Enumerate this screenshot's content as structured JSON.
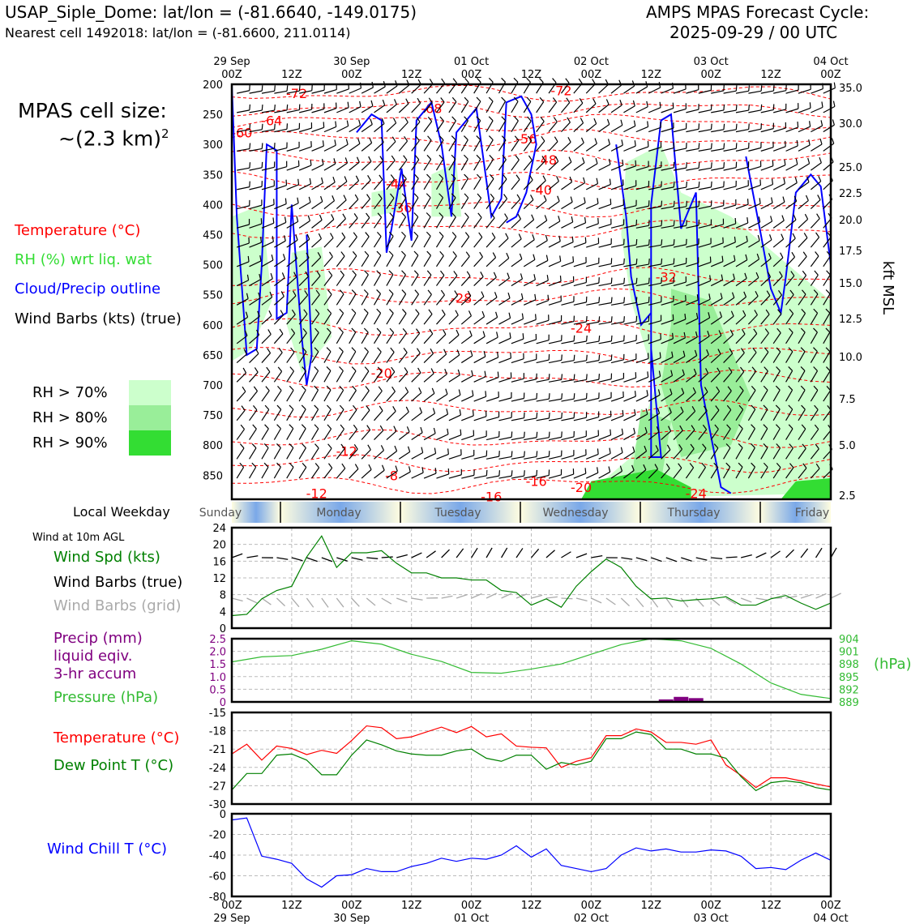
{
  "header": {
    "station": "USAP_Siple_Dome: lat/lon = (-81.6640, -149.0175)",
    "nearest": "Nearest cell 1492018: lat/lon = (-81.6600, 211.0114)",
    "cycle_title": "AMPS MPAS Forecast Cycle:",
    "cycle_value": "2025-09-29 / 00 UTC"
  },
  "sidebar": {
    "cell_size_label": "MPAS cell size:",
    "cell_size_value": "~(2.3 km)",
    "cell_size_exp": "2",
    "legend_temperature": "Temperature (°C)",
    "legend_rh": "RH (%) wrt liq. wat",
    "legend_cloud": "Cloud/Precip outline",
    "legend_barbs": "Wind Barbs (kts) (true)",
    "rh_levels": [
      {
        "label": "RH > 70%",
        "color": "#ccffcc"
      },
      {
        "label": "RH > 80%",
        "color": "#99ee99"
      },
      {
        "label": "RH > 90%",
        "color": "#33dd33"
      }
    ],
    "weekday_label": "Local Weekday",
    "wind_10m_label": "Wind at 10m AGL",
    "wind_spd_label": "Wind Spd (kts)",
    "wind_barbs_true": "Wind Barbs (true)",
    "wind_barbs_grid": "Wind Barbs (grid)",
    "precip_label_1": "Precip (mm)",
    "precip_label_2": "liquid eqiv.",
    "precip_label_3": "3-hr accum",
    "pressure_label": "Pressure (hPa)",
    "pressure_unit": "(hPa)",
    "temp_label": "Temperature (°C)",
    "dew_label": "Dew Point T (°C)",
    "windchill_label": "Wind Chill T (°C)"
  },
  "colors": {
    "temperature": "#ff0000",
    "rh": "#33cc33",
    "cloud": "#0000ff",
    "wind_speed": "#008000",
    "grid_barbs": "#aaaaaa",
    "precip": "#800080",
    "pressure": "#33bb33",
    "dew": "#008000",
    "windchill": "#0000ff"
  },
  "time_axis": {
    "ticks": [
      {
        "top": "29 Sep",
        "bot": "00Z"
      },
      {
        "top": "",
        "bot": "12Z"
      },
      {
        "top": "30 Sep",
        "bot": "00Z"
      },
      {
        "top": "",
        "bot": "12Z"
      },
      {
        "top": "01 Oct",
        "bot": "00Z"
      },
      {
        "top": "",
        "bot": "12Z"
      },
      {
        "top": "02 Oct",
        "bot": "00Z"
      },
      {
        "top": "",
        "bot": "12Z"
      },
      {
        "top": "03 Oct",
        "bot": "00Z"
      },
      {
        "top": "",
        "bot": "12Z"
      },
      {
        "top": "04 Oct",
        "bot": "00Z"
      }
    ]
  },
  "weekdays": [
    "Sunday",
    "Monday",
    "Tuesday",
    "Wednesday",
    "Thursday",
    "Friday"
  ],
  "chart_data": [
    {
      "type": "heatmap",
      "panel": "time-height cross section",
      "y_left_label": "",
      "y_left_ticks": [
        200,
        250,
        300,
        350,
        400,
        450,
        500,
        550,
        600,
        650,
        700,
        750,
        800,
        850
      ],
      "y_right_label": "kft MSL",
      "y_right_ticks": [
        "35.0",
        "30.0",
        "25.0",
        "22.5",
        "20.0",
        "17.5",
        "15.0",
        "12.5",
        "10.0",
        "7.5",
        "5.0",
        "2.5"
      ],
      "ylim": [
        200,
        890
      ],
      "x_hours": [
        0,
        120
      ],
      "temperature_contours": [
        {
          "label": "-72",
          "t": 13,
          "p": 215
        },
        {
          "label": "-72",
          "t": 66,
          "p": 210
        },
        {
          "label": "-68",
          "t": 40,
          "p": 240
        },
        {
          "label": "-64",
          "t": 8,
          "p": 260
        },
        {
          "label": "-60",
          "t": 2,
          "p": 280
        },
        {
          "label": "-56",
          "t": 59,
          "p": 290
        },
        {
          "label": "-48",
          "t": 63,
          "p": 325
        },
        {
          "label": "-44",
          "t": 33,
          "p": 365
        },
        {
          "label": "-40",
          "t": 62,
          "p": 375
        },
        {
          "label": "-36",
          "t": 34,
          "p": 405
        },
        {
          "label": "-32",
          "t": 87,
          "p": 520
        },
        {
          "label": "-28",
          "t": 46,
          "p": 555
        },
        {
          "label": "-24",
          "t": 70,
          "p": 605
        },
        {
          "label": "-20",
          "t": 30,
          "p": 680
        },
        {
          "label": "-16",
          "t": 61,
          "p": 860
        },
        {
          "label": "-20",
          "t": 70,
          "p": 870
        },
        {
          "label": "-12",
          "t": 23,
          "p": 810
        },
        {
          "label": "-8",
          "t": 32,
          "p": 850
        },
        {
          "label": "-12",
          "t": 17,
          "p": 880
        },
        {
          "label": "-16",
          "t": 52,
          "p": 885
        },
        {
          "label": "-24",
          "t": 93,
          "p": 880
        }
      ]
    },
    {
      "type": "line",
      "panel": "wind speed 10m",
      "ylabel": "Wind Spd (kts)",
      "ylim": [
        0,
        24
      ],
      "yticks": [
        0,
        4,
        8,
        12,
        16,
        20,
        24
      ],
      "x_hours": [
        0,
        3,
        6,
        9,
        12,
        15,
        18,
        21,
        24,
        27,
        30,
        33,
        36,
        39,
        42,
        45,
        48,
        51,
        54,
        57,
        60,
        63,
        66,
        69,
        72,
        75,
        78,
        81,
        84,
        87,
        90,
        93,
        96,
        99,
        102,
        105,
        108,
        111,
        114,
        117,
        120
      ],
      "series": [
        {
          "name": "Wind Spd (kts)",
          "values": [
            3,
            3.3,
            7,
            9,
            10,
            17,
            22,
            14.5,
            18,
            18,
            18.5,
            15.5,
            13.2,
            13.2,
            12,
            12,
            11.5,
            11.5,
            9,
            8.5,
            5.5,
            7,
            5,
            10,
            13.5,
            16.5,
            14.5,
            10,
            7,
            7.2,
            6.5,
            6.8,
            7,
            7.5,
            5.5,
            5.5,
            7,
            7.8,
            6,
            4.5,
            6
          ]
        }
      ]
    },
    {
      "type": "line",
      "panel": "precip and pressure",
      "ylabel": "Precip (mm)",
      "ylim": [
        0,
        2.5
      ],
      "yticks": [
        0,
        0.5,
        1.0,
        1.5,
        2.0,
        2.5
      ],
      "y2label": "(hPa)",
      "y2lim": [
        889,
        904
      ],
      "y2ticks": [
        889,
        892,
        895,
        898,
        901,
        904
      ],
      "x_hours": [
        0,
        6,
        12,
        18,
        24,
        30,
        36,
        42,
        48,
        54,
        60,
        66,
        72,
        78,
        84,
        90,
        96,
        102,
        108,
        114,
        120
      ],
      "series": [
        {
          "name": "Pressure (hPa)",
          "values": [
            898.5,
            899.7,
            900,
            901.5,
            903.5,
            902.7,
            900.3,
            898.6,
            896,
            895.8,
            896.8,
            898,
            900.3,
            902.6,
            904,
            903.5,
            901.7,
            898,
            893.5,
            890.8,
            889.8
          ]
        }
      ],
      "precip_bars": {
        "x_hours": [
          87,
          90,
          93
        ],
        "values": [
          0.1,
          0.2,
          0.15
        ]
      }
    },
    {
      "type": "line",
      "panel": "temperature and dew point",
      "ylim": [
        -30,
        -15
      ],
      "yticks": [
        -15,
        -18,
        -21,
        -24,
        -27,
        -30
      ],
      "x_hours": [
        0,
        3,
        6,
        9,
        12,
        15,
        18,
        21,
        24,
        27,
        30,
        33,
        36,
        39,
        42,
        45,
        48,
        51,
        54,
        57,
        60,
        63,
        66,
        69,
        72,
        75,
        78,
        81,
        84,
        87,
        90,
        93,
        96,
        99,
        102,
        105,
        108,
        111,
        114,
        117,
        120
      ],
      "series": [
        {
          "name": "Temperature (°C)",
          "values": [
            -21.8,
            -20.2,
            -22.8,
            -20.5,
            -20.9,
            -21.9,
            -21.2,
            -21.7,
            -19.6,
            -17.2,
            -17.5,
            -19.3,
            -19,
            -18.2,
            -17.4,
            -18.3,
            -17.3,
            -19,
            -18.5,
            -20.5,
            -20.7,
            -20.8,
            -24,
            -23,
            -22.4,
            -18.8,
            -18.8,
            -17.7,
            -18.2,
            -19.9,
            -19.9,
            -20.2,
            -19.5,
            -23.6,
            -25.3,
            -27.3,
            -25.7,
            -25.7,
            -26.2,
            -26.7,
            -27.2
          ],
          "color": "#ff0000"
        },
        {
          "name": "Dew Point T (°C)",
          "values": [
            -27.7,
            -25,
            -25,
            -22,
            -21.8,
            -22.8,
            -25.2,
            -25.2,
            -22,
            -19.5,
            -20.3,
            -21.3,
            -21.8,
            -22,
            -22,
            -21.3,
            -21,
            -22.5,
            -23,
            -22,
            -22,
            -24.3,
            -23.2,
            -23.6,
            -23,
            -19.3,
            -19.3,
            -18.2,
            -18.6,
            -21,
            -21,
            -21.8,
            -21.8,
            -22.5,
            -25.5,
            -27.8,
            -26.5,
            -26.2,
            -26.5,
            -27.3,
            -27.7
          ],
          "color": "#008000"
        }
      ]
    },
    {
      "type": "line",
      "panel": "wind chill",
      "ylim": [
        -80,
        0
      ],
      "yticks": [
        0,
        -20,
        -40,
        -60,
        -80
      ],
      "x_hours": [
        0,
        3,
        6,
        9,
        12,
        15,
        18,
        21,
        24,
        27,
        30,
        33,
        36,
        39,
        42,
        45,
        48,
        51,
        54,
        57,
        60,
        63,
        66,
        69,
        72,
        75,
        78,
        81,
        84,
        87,
        90,
        93,
        96,
        99,
        102,
        105,
        108,
        111,
        114,
        117,
        120
      ],
      "series": [
        {
          "name": "Wind Chill T (°C)",
          "values": [
            -6,
            -4,
            -41,
            -44,
            -48,
            -63,
            -71,
            -60,
            -59,
            -53,
            -56,
            -56,
            -51,
            -48,
            -43,
            -46,
            -43,
            -44,
            -40,
            -31,
            -42,
            -34,
            -50,
            -53,
            -56,
            -53,
            -40,
            -33,
            -36,
            -34,
            -37,
            -37,
            -35,
            -36,
            -41,
            -53,
            -52,
            -54,
            -45,
            -38,
            -45
          ]
        }
      ]
    }
  ]
}
